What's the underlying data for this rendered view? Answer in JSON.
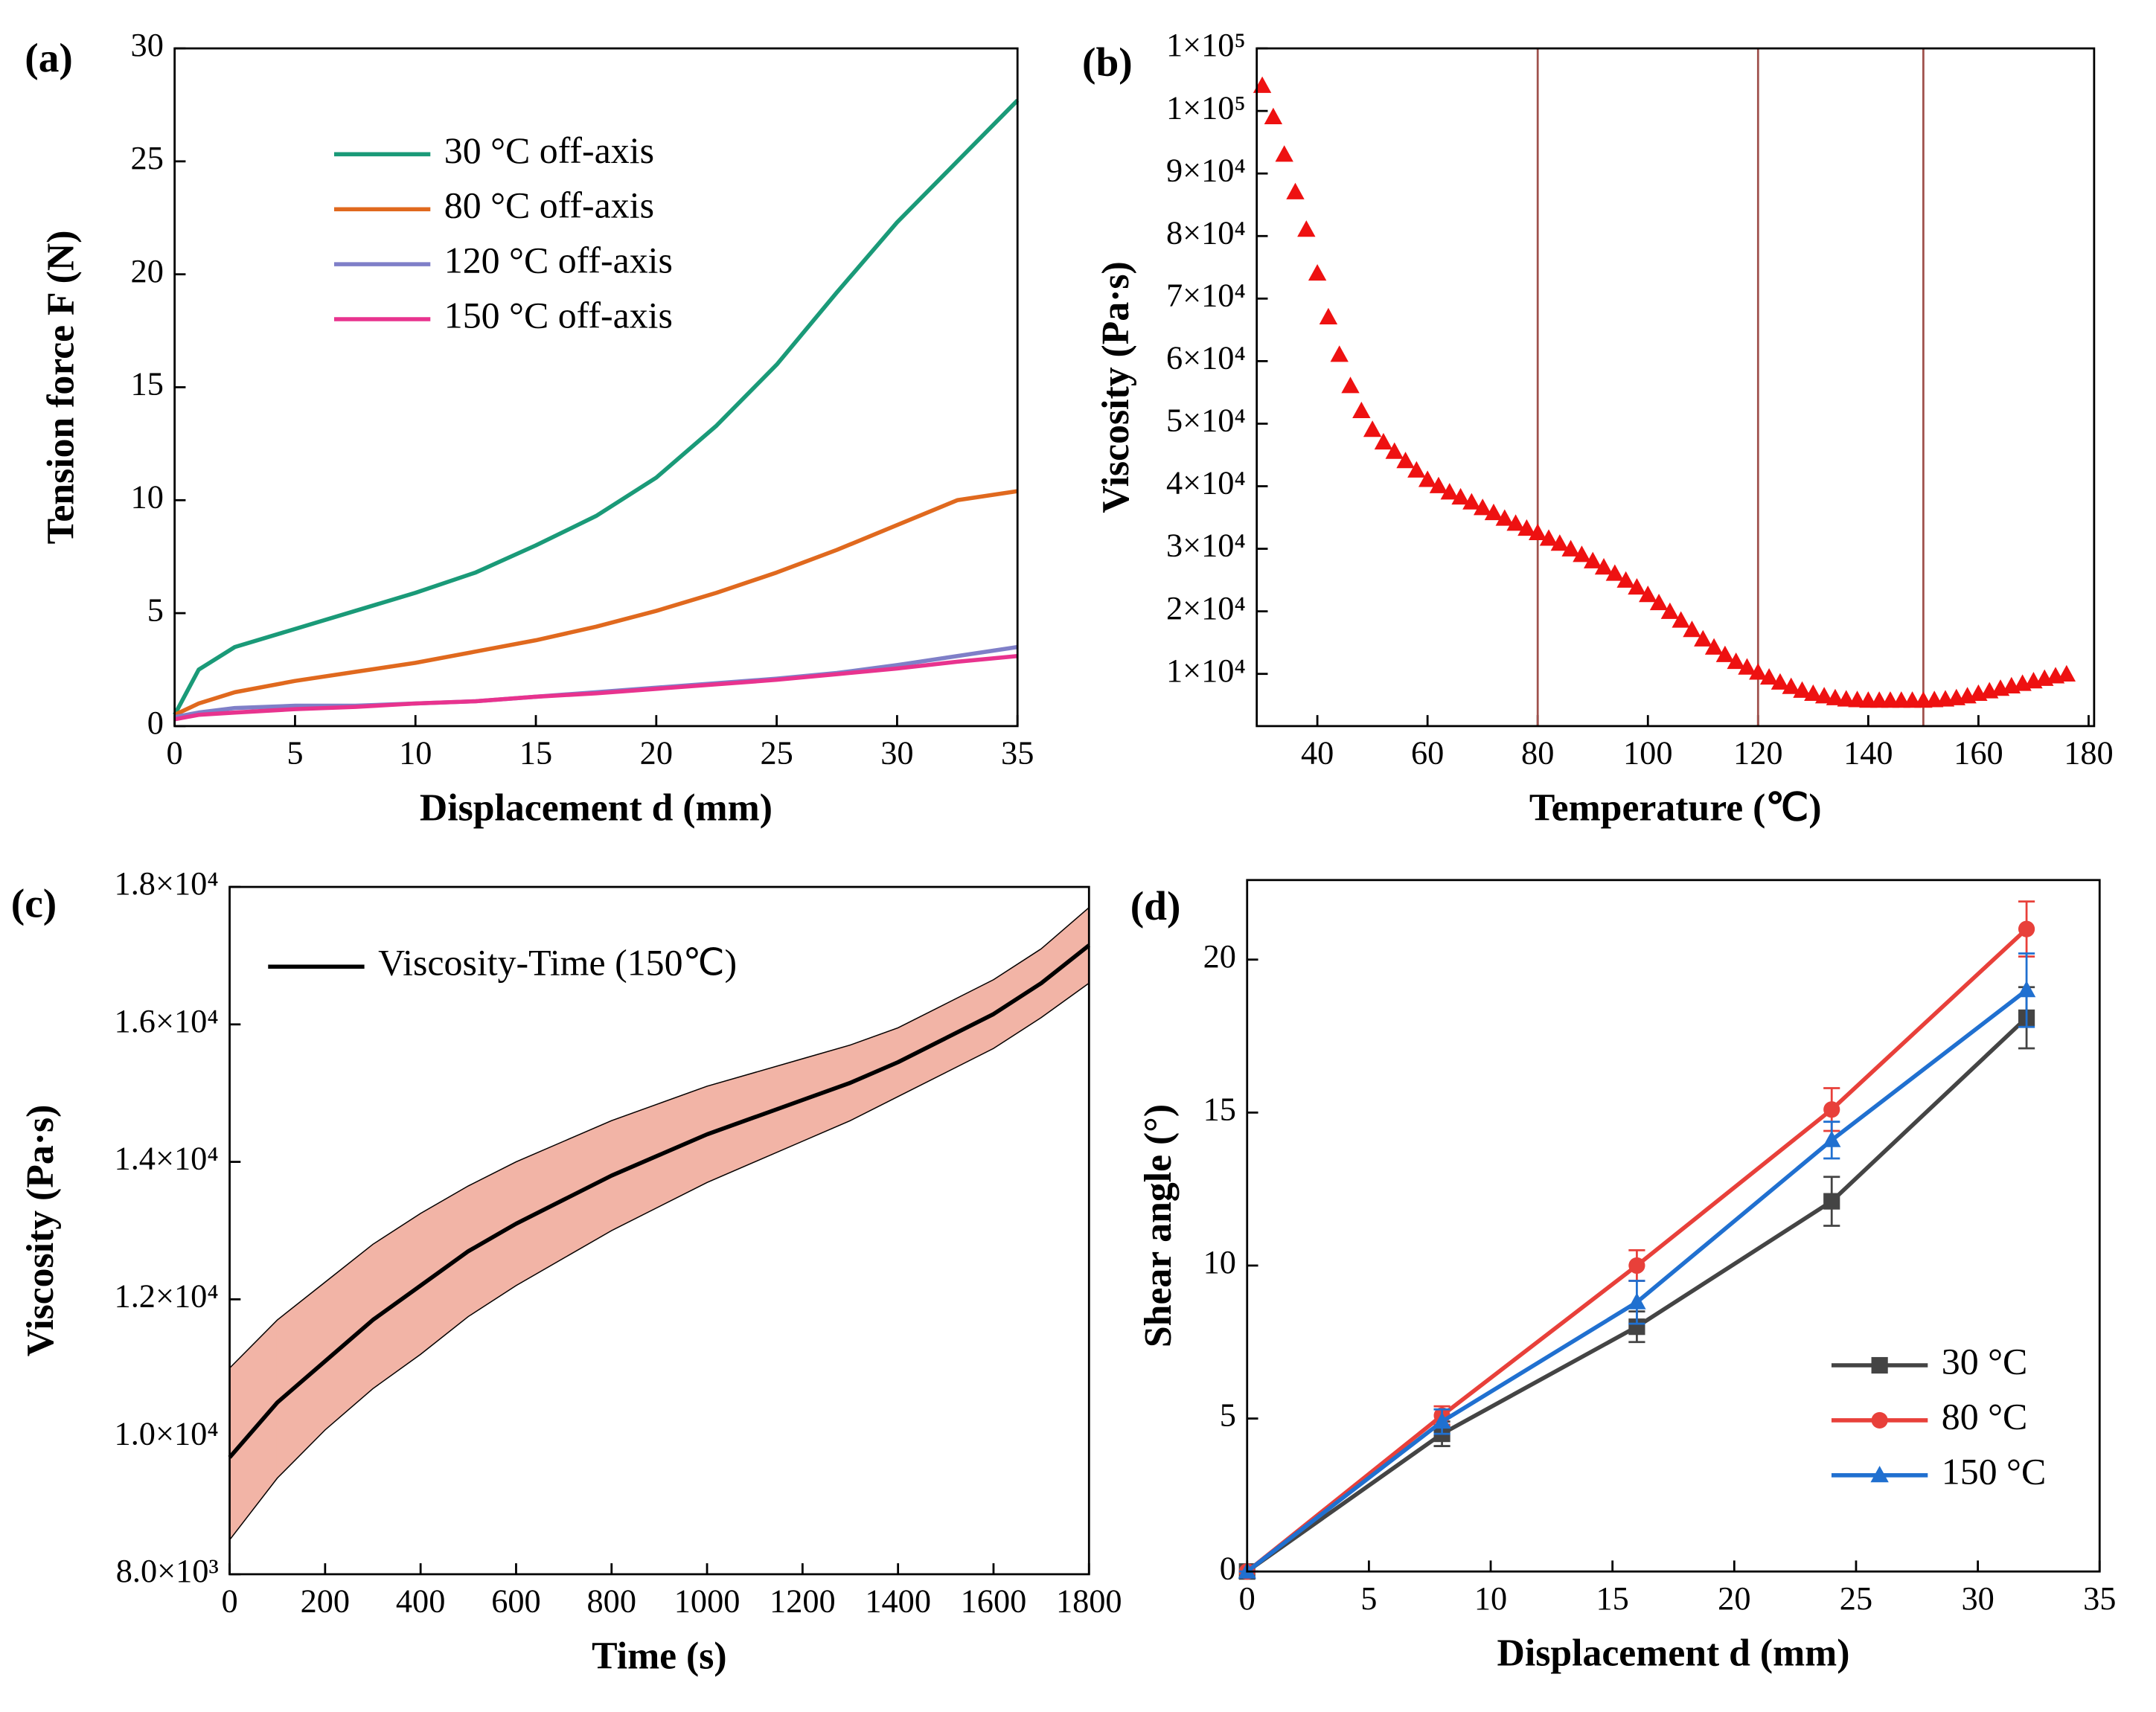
{
  "chart_data": [
    {
      "panel": "(a)",
      "type": "line",
      "xlabel": "Displacement d (mm)",
      "ylabel": "Tension force F (N)",
      "x": [
        0,
        1,
        2.5,
        5,
        7.5,
        10,
        12.5,
        15,
        17.5,
        20,
        22.5,
        25,
        27.5,
        30,
        32.5,
        35
      ],
      "xlim": [
        0,
        35
      ],
      "xticks": [
        0,
        5,
        10,
        15,
        20,
        25,
        30,
        35
      ],
      "ylim": [
        0,
        30
      ],
      "yticks": [
        0,
        5,
        10,
        15,
        20,
        25,
        30
      ],
      "legend": "upper left",
      "series": [
        {
          "name": "30 °C off-axis",
          "color": "#1a9a78",
          "values": [
            0.5,
            2.5,
            3.5,
            4.3,
            5.1,
            5.9,
            6.8,
            8.0,
            9.3,
            11.0,
            13.3,
            16.0,
            19.2,
            22.3,
            25.0,
            27.7
          ]
        },
        {
          "name": "80 °C off-axis",
          "color": "#e0691e",
          "values": [
            0.5,
            1.0,
            1.5,
            2.0,
            2.4,
            2.8,
            3.3,
            3.8,
            4.4,
            5.1,
            5.9,
            6.8,
            7.8,
            8.9,
            10.0,
            10.4
          ]
        },
        {
          "name": "120 °C off-axis",
          "color": "#7f7fc8",
          "values": [
            0.4,
            0.6,
            0.8,
            0.9,
            0.9,
            1.0,
            1.1,
            1.3,
            1.5,
            1.7,
            1.9,
            2.1,
            2.35,
            2.7,
            3.1,
            3.5
          ]
        },
        {
          "name": "150 °C off-axis",
          "color": "#e8338e",
          "values": [
            0.3,
            0.5,
            0.6,
            0.75,
            0.85,
            1.0,
            1.1,
            1.3,
            1.45,
            1.65,
            1.85,
            2.05,
            2.3,
            2.55,
            2.85,
            3.1
          ]
        }
      ]
    },
    {
      "panel": "(b)",
      "type": "scatter",
      "xlabel": "Temperature  (℃)",
      "ylabel": "Viscosity  (Pa·s)",
      "x": [
        30,
        32,
        34,
        36,
        38,
        40,
        42,
        44,
        46,
        48,
        50,
        52,
        54,
        56,
        58,
        60,
        62,
        64,
        66,
        68,
        70,
        72,
        74,
        76,
        78,
        80,
        82,
        84,
        86,
        88,
        90,
        92,
        94,
        96,
        98,
        100,
        102,
        104,
        106,
        108,
        110,
        112,
        114,
        116,
        118,
        120,
        122,
        124,
        126,
        128,
        130,
        132,
        134,
        136,
        138,
        140,
        142,
        144,
        146,
        148,
        150,
        152,
        154,
        156,
        158,
        160,
        162,
        164,
        166,
        168,
        170,
        172,
        174,
        176
      ],
      "xlim": [
        29,
        181
      ],
      "xticks": [
        40,
        60,
        80,
        100,
        120,
        140,
        160,
        180
      ],
      "ylim": [
        1650,
        110000
      ],
      "yticks": [
        {
          "value": 10000,
          "label": "1×10⁴"
        },
        {
          "value": 20000,
          "label": "2×10⁴"
        },
        {
          "value": 30000,
          "label": "3×10⁴"
        },
        {
          "value": 40000,
          "label": "4×10⁴"
        },
        {
          "value": 50000,
          "label": "5×10⁴"
        },
        {
          "value": 60000,
          "label": "6×10⁴"
        },
        {
          "value": 70000,
          "label": "7×10⁴"
        },
        {
          "value": 80000,
          "label": "8×10⁴"
        },
        {
          "value": 90000,
          "label": "9×10⁴"
        },
        {
          "value": 100000,
          "label": "1×10⁵"
        },
        {
          "value": 110000,
          "label": "1×10⁵"
        }
      ],
      "vlines": [
        80,
        120,
        150
      ],
      "vline_color": "#a0524d",
      "series": [
        {
          "color": "#ee1111",
          "marker": "triangle",
          "values": [
            104000,
            99000,
            93000,
            87000,
            81000,
            74000,
            67000,
            61000,
            56000,
            52000,
            49000,
            47000,
            45500,
            44000,
            42500,
            41000,
            40000,
            39000,
            38200,
            37400,
            36500,
            35700,
            34800,
            34000,
            33200,
            32500,
            31600,
            30800,
            29900,
            29000,
            28000,
            27000,
            26000,
            24900,
            23800,
            22600,
            21300,
            19900,
            18500,
            17000,
            15500,
            14200,
            13000,
            11900,
            11000,
            10200,
            9400,
            8600,
            7900,
            7300,
            6800,
            6400,
            6100,
            5900,
            5800,
            5700,
            5700,
            5700,
            5700,
            5700,
            5700,
            5800,
            5900,
            6100,
            6400,
            6800,
            7200,
            7600,
            8000,
            8400,
            8800,
            9200,
            9600,
            9900
          ]
        }
      ]
    },
    {
      "panel": "(c)",
      "type": "line",
      "xlabel": "Time (s)",
      "ylabel": "Viscosity (Pa·s)",
      "x": [
        0,
        100,
        200,
        300,
        400,
        500,
        600,
        700,
        800,
        900,
        1000,
        1100,
        1200,
        1300,
        1400,
        1500,
        1600,
        1700,
        1800
      ],
      "xlim": [
        0,
        1800
      ],
      "xticks": [
        0,
        200,
        400,
        600,
        800,
        1000,
        1200,
        1400,
        1600,
        1800
      ],
      "ylim": [
        8000,
        18000
      ],
      "yticks": [
        {
          "value": 8000,
          "label": "8.0×10³"
        },
        {
          "value": 10000,
          "label": "1.0×10⁴"
        },
        {
          "value": 12000,
          "label": "1.2×10⁴"
        },
        {
          "value": 14000,
          "label": "1.4×10⁴"
        },
        {
          "value": 16000,
          "label": "1.6×10⁴"
        },
        {
          "value": 18000,
          "label": "1.8×10⁴"
        }
      ],
      "legend": "upper left",
      "series": [
        {
          "name": "Viscosity-Time (150℃)",
          "color": "#000000",
          "band_color": "#f2b4a6",
          "values": [
            9700,
            10500,
            11100,
            11700,
            12200,
            12700,
            13100,
            13450,
            13800,
            14100,
            14400,
            14650,
            14900,
            15150,
            15450,
            15800,
            16150,
            16600,
            17150
          ],
          "upper": [
            11000,
            11700,
            12250,
            12800,
            13250,
            13650,
            14000,
            14300,
            14600,
            14850,
            15100,
            15300,
            15500,
            15700,
            15950,
            16300,
            16650,
            17100,
            17700
          ],
          "lower": [
            8500,
            9400,
            10100,
            10700,
            11200,
            11750,
            12200,
            12600,
            13000,
            13350,
            13700,
            14000,
            14300,
            14600,
            14950,
            15300,
            15650,
            16100,
            16600
          ]
        }
      ]
    },
    {
      "panel": "(d)",
      "type": "line",
      "xlabel": "Displacement d (mm)",
      "ylabel": "Shear angle (°)",
      "x": [
        0,
        8,
        16,
        24,
        32
      ],
      "xlim": [
        0,
        35
      ],
      "xticks": [
        0,
        5,
        10,
        15,
        20,
        25,
        30,
        35
      ],
      "ylim": [
        0,
        22.6
      ],
      "yticks": [
        0,
        5,
        10,
        15,
        20
      ],
      "legend": "lower right",
      "series": [
        {
          "name": "30 °C",
          "color": "#444444",
          "marker": "square",
          "values": [
            0,
            4.5,
            8.0,
            12.1,
            18.1
          ],
          "errors": [
            0,
            0.4,
            0.5,
            0.8,
            1.0
          ]
        },
        {
          "name": "80 °C",
          "color": "#e8403a",
          "marker": "circle",
          "values": [
            0,
            5.1,
            10.0,
            15.1,
            21.0
          ],
          "errors": [
            0,
            0.3,
            0.5,
            0.7,
            0.9
          ]
        },
        {
          "name": "150 °C",
          "color": "#2070d0",
          "marker": "triangle",
          "values": [
            0,
            4.9,
            8.8,
            14.1,
            19.0
          ],
          "errors": [
            0,
            0.4,
            0.7,
            0.6,
            1.2
          ]
        }
      ]
    }
  ]
}
